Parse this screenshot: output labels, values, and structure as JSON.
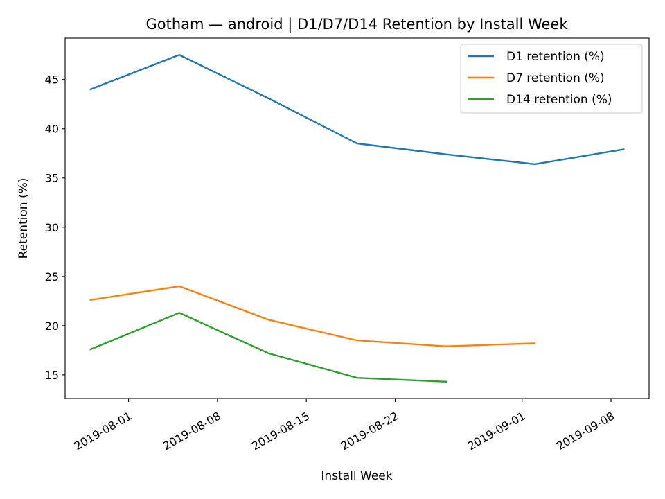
{
  "chart_data": {
    "type": "line",
    "title": "Gotham — android | D1/D7/D14 Retention by Install Week",
    "xlabel": "Install Week",
    "ylabel": "Retention (%)",
    "x": [
      "2019-07-29",
      "2019-08-05",
      "2019-08-12",
      "2019-08-19",
      "2019-08-26",
      "2019-09-02",
      "2019-09-09"
    ],
    "xlim": [
      "2019-07-27",
      "2019-09-11"
    ],
    "ylim": [
      12.6,
      49.2
    ],
    "x_ticks": [
      "2019-08-01",
      "2019-08-08",
      "2019-08-15",
      "2019-08-22",
      "2019-09-01",
      "2019-09-08"
    ],
    "y_ticks": [
      15,
      20,
      25,
      30,
      35,
      40,
      45
    ],
    "grid": false,
    "legend_position": "top-right",
    "series": [
      {
        "name": "D1 retention (%)",
        "color": "#1f77b4",
        "values": [
          44.0,
          47.5,
          43.1,
          38.5,
          37.4,
          36.4,
          37.9
        ]
      },
      {
        "name": "D7 retention (%)",
        "color": "#ff7f0e",
        "values": [
          22.6,
          24.0,
          20.6,
          18.5,
          17.9,
          18.2,
          null
        ]
      },
      {
        "name": "D14 retention (%)",
        "color": "#2ca02c",
        "values": [
          17.6,
          21.3,
          17.2,
          14.7,
          14.3,
          null,
          null
        ]
      }
    ]
  }
}
